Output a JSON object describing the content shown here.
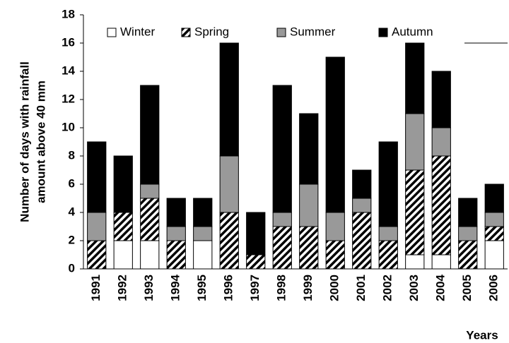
{
  "chart_data": {
    "type": "stacked_bar",
    "ylabel": [
      "Number of days with rainfall",
      "amount above 40 mm"
    ],
    "xlabel": "Years",
    "categories": [
      "1991",
      "1992",
      "1993",
      "1994",
      "1995",
      "1996",
      "1997",
      "1998",
      "1999",
      "2000",
      "2001",
      "2002",
      "2003",
      "2004",
      "2005",
      "2006"
    ],
    "series": [
      {
        "name": "Winter",
        "color": "#ffffff",
        "pattern": "solid",
        "values": [
          0,
          2,
          2,
          0,
          2,
          0,
          0,
          0,
          0,
          0,
          0,
          0,
          1,
          1,
          0,
          2
        ]
      },
      {
        "name": "Spring",
        "color": "#ffffff",
        "pattern": "hatch",
        "values": [
          2,
          2,
          3,
          2,
          0,
          4,
          1,
          3,
          3,
          2,
          4,
          2,
          6,
          7,
          2,
          1
        ]
      },
      {
        "name": "Summer",
        "color": "#999999",
        "pattern": "solid",
        "values": [
          2,
          0,
          1,
          1,
          1,
          4,
          0,
          1,
          3,
          2,
          1,
          1,
          4,
          2,
          1,
          1
        ]
      },
      {
        "name": "Autumn",
        "color": "#000000",
        "pattern": "solid",
        "values": [
          5,
          4,
          7,
          2,
          2,
          8,
          3,
          9,
          5,
          11,
          2,
          6,
          5,
          4,
          2,
          2
        ]
      }
    ],
    "ylim": [
      0,
      18
    ],
    "yticks": [
      0,
      2,
      4,
      6,
      8,
      10,
      12,
      14,
      16,
      18
    ],
    "legend": "top"
  }
}
